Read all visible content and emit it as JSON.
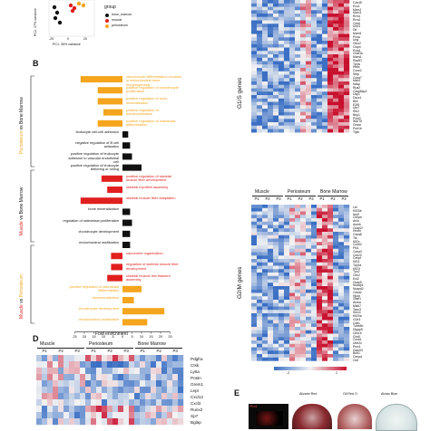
{
  "colors": {
    "bone_marrow": "#111111",
    "muscle": "#e0201f",
    "periosteum": "#f4a51d",
    "heat_low": "#3a6fc4",
    "heat_mid": "#f3f3f3",
    "heat_high": "#c8102e"
  },
  "panel_a": {
    "ylabel": "PC2: 17% variance",
    "xlabel": "PC1: 35% variance",
    "tick_labels": [
      "-20",
      "0",
      "20"
    ],
    "legend_title": "group",
    "legend_items": [
      "bone_marrow",
      "muscle",
      "periosteum"
    ]
  },
  "panel_b": {
    "label": "B",
    "xlabel": "Fold enrichment",
    "group_labels": [
      "Periosteum vs Bone Marrow",
      "Muscle vs Bone Marrow",
      "Muscle vs Periosteum"
    ],
    "chart_data": {
      "type": "bar",
      "orientation": "horizontal",
      "xlim": [
        0,
        25
      ],
      "xticks": [
        25,
        20,
        15,
        10,
        5,
        0,
        5,
        10,
        15,
        20,
        25
      ],
      "categories": [
        "chondrocyte differentiation involved in endochondral bone morphogenesis",
        "positive regulation of chondrocyte proliferation",
        "positive regulation of bone mineralization",
        "positive regulation of biomineralization",
        "positive regulation of osteoblast differentiation",
        "leukocyte cell-cell adhesion",
        "negative regulation of B cell activation",
        "positive regulation of leukocyte adhesion to vascular endothelial cell",
        "positive regulation of leukocyte tethering or rolling",
        "positive regulation of skeletal muscle fiber development",
        "skeletal myofibril assembly",
        "skeletal muscle fiber adaptation",
        "bone mineralization",
        "regulation of osteoblast proliferation",
        "chondrocyte development",
        "endochondral ossification",
        "sarcomere organization",
        "regulation of skeletal muscle fiber development",
        "skeletal muscle thin filament assembly",
        "positive regulation of osteoblast differentiation",
        "biomineralization",
        "chondrocyte development",
        "endochondral ossification"
      ],
      "series": [
        {
          "direction": "left",
          "values": [
            22,
            13,
            13,
            10,
            13,
            0,
            0,
            0,
            0,
            0,
            0,
            0,
            0,
            0,
            0,
            0,
            0,
            0,
            0,
            0,
            0,
            0,
            0
          ]
        },
        {
          "direction": "right",
          "values": [
            0,
            0,
            0,
            0,
            0,
            3,
            4,
            5,
            10,
            0,
            0,
            0,
            4,
            5,
            4,
            4,
            0,
            0,
            0,
            0,
            0,
            0,
            0
          ]
        },
        {
          "direction": "left",
          "values": [
            0,
            0,
            0,
            0,
            0,
            0,
            0,
            0,
            0,
            11,
            8,
            22,
            0,
            0,
            0,
            0,
            6,
            6,
            8,
            0,
            0,
            0,
            0
          ]
        },
        {
          "direction": "right",
          "values": [
            0,
            0,
            0,
            0,
            0,
            0,
            0,
            0,
            0,
            0,
            0,
            0,
            0,
            0,
            0,
            0,
            0,
            0,
            0,
            10,
            6,
            22,
            13
          ]
        }
      ]
    }
  },
  "panel_c": {
    "g1s_label": "G1/S genes",
    "g2m_label": "G2/M genes",
    "col_groups": [
      "Muscle",
      "Periosteum",
      "Bone Marrow"
    ],
    "col_sub": [
      "P1",
      "P2",
      "P3",
      "P1",
      "P2",
      "P3",
      "P1",
      "P2",
      "P3"
    ],
    "g1s_genes": [
      "Cdc45",
      "Exo1",
      "Mcm2",
      "Mcm3",
      "Rrm1",
      "Rrm2",
      "Cdc6",
      "Uhrf1",
      "Dtl",
      "Mcm5",
      "Pcna",
      "Ung",
      "Gins2",
      "Clspn",
      "Pola1",
      "Chaf1b",
      "Mcm6",
      "Rad51",
      "Tyms",
      "Hells",
      "Ccne2",
      "Slbp",
      "Cdca7",
      "Msh2",
      "Nasp",
      "Rpa2",
      "Casp8ap2",
      "Usp1",
      "Dscc1",
      "Blm",
      "E2f8",
      "Ubr7",
      "Rfc2",
      "Brip1",
      "Pold3",
      "Wdr76",
      "Gmnn",
      "Polr1b",
      "Tipin"
    ],
    "g2m_genes": [
      "Lbr",
      "Kif20b",
      "Nuf2",
      "Cenpe",
      "Anln",
      "Aurkb",
      "Ckap2l",
      "Hmmr",
      "Cdca8",
      "Ttk",
      "Kif2c",
      "Ccnb2",
      "Plk1",
      "Cdca3",
      "Cdc20",
      "Cenpf",
      "Kif11",
      "Top2a",
      "Kif23",
      "Tpx2",
      "Cks2",
      "Ect2",
      "Ckap5",
      "Nusap1",
      "Ncapd2",
      "Cdca2",
      "Hjurp",
      "Gtse1",
      "Aurka",
      "Mki67",
      "Tacc3",
      "Smc4",
      "Kif20a",
      "G2e3",
      "Cdk1",
      "Tubb4b",
      "Dlgap5",
      "Cks1b",
      "Cbx5",
      "Ccnb1",
      "Ube2c",
      "Psrc1",
      "Gas2l3",
      "Bub1",
      "Cenpa",
      "Ctcf"
    ],
    "scale_low": "-2",
    "scale_high": "2"
  },
  "panel_d": {
    "label": "D",
    "col_groups": [
      "Muscle",
      "Periosteum",
      "Bone Marrow"
    ],
    "col_sub": [
      "P1",
      "P2",
      "P3",
      "P1",
      "P2",
      "P3",
      "P1",
      "P2",
      "P3"
    ],
    "genes_top": [
      "Pdgfra",
      "Ctsk",
      "Ly6a",
      "Postn",
      "Grem1",
      "Lepr",
      "Cxcl12",
      "Cxcl2"
    ],
    "genes_bottom": [
      "Runx2",
      "Sp7",
      "Bglap"
    ]
  },
  "panel_e": {
    "label": "E",
    "image_labels": [
      "Prx1",
      "Alizarin Red",
      "Oil Red O",
      "Alcian Blue"
    ]
  }
}
